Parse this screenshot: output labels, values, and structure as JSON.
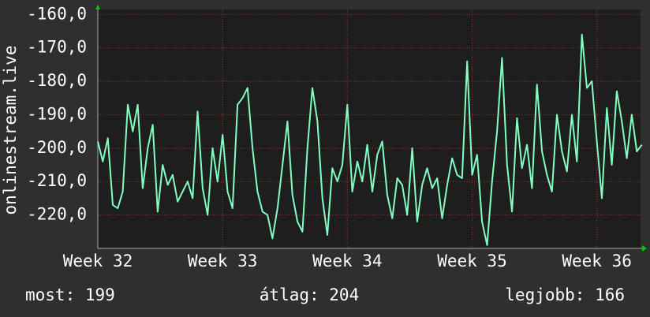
{
  "chart_data": {
    "type": "line",
    "y_label": "onlinestream.live",
    "x": [
      32,
      32.04,
      32.08,
      32.12,
      32.16,
      32.2,
      32.24,
      32.28,
      32.32,
      32.36,
      32.4,
      32.44,
      32.48,
      32.52,
      32.56,
      32.6,
      32.64,
      32.68,
      32.72,
      32.76,
      32.8,
      32.84,
      32.88,
      32.92,
      32.96,
      33,
      33.04,
      33.08,
      33.12,
      33.16,
      33.2,
      33.24,
      33.28,
      33.32,
      33.36,
      33.4,
      33.44,
      33.48,
      33.52,
      33.56,
      33.6,
      33.64,
      33.68,
      33.72,
      33.76,
      33.8,
      33.84,
      33.88,
      33.92,
      33.96,
      34,
      34.04,
      34.08,
      34.12,
      34.16,
      34.2,
      34.24,
      34.28,
      34.32,
      34.36,
      34.4,
      34.44,
      34.48,
      34.52,
      34.56,
      34.6,
      34.64,
      34.68,
      34.72,
      34.76,
      34.8,
      34.84,
      34.88,
      34.92,
      34.96,
      35,
      35.04,
      35.08,
      35.12,
      35.16,
      35.2,
      35.24,
      35.28,
      35.32,
      35.36,
      35.4,
      35.44,
      35.48,
      35.52,
      35.56,
      35.6,
      35.64,
      35.68,
      35.72,
      35.76,
      35.8,
      35.84,
      35.88,
      35.92,
      35.96,
      36,
      36.04,
      36.08,
      36.12,
      36.16,
      36.2,
      36.24,
      36.28,
      36.32,
      36.36
    ],
    "series": [
      {
        "color": "#80ffc0",
        "values": [
          -198,
          -204,
          -197,
          -217,
          -218,
          -213,
          -187,
          -195,
          -187,
          -212,
          -200,
          -193,
          -219,
          -205,
          -211,
          -208,
          -216,
          -213,
          -210,
          -215,
          -189,
          -212,
          -220,
          -200,
          -210,
          -196,
          -213,
          -218,
          -187,
          -185,
          -182,
          -200,
          -213,
          -219,
          -220,
          -227,
          -218,
          -205,
          -192,
          -214,
          -222,
          -225,
          -200,
          -182,
          -192,
          -215,
          -226,
          -206,
          -210,
          -205,
          -187,
          -213,
          -204,
          -210,
          -199,
          -213,
          -202,
          -198,
          -214,
          -221,
          -209,
          -211,
          -220,
          -200,
          -222,
          -211,
          -206,
          -212,
          -209,
          -221,
          -211,
          -203,
          -208,
          -209,
          -174,
          -208,
          -202,
          -222,
          -229,
          -210,
          -195,
          -173,
          -205,
          -219,
          -191,
          -206,
          -199,
          -212,
          -181,
          -201,
          -208,
          -213,
          -190,
          -201,
          -207,
          -190,
          -204,
          -166,
          -182,
          -180,
          -198,
          -215,
          -188,
          -205,
          -183,
          -192,
          -203,
          -190,
          -201,
          -199
        ]
      }
    ],
    "xlim": [
      32,
      36.35
    ],
    "xticks": [
      {
        "value": 32,
        "label": "Week 32"
      },
      {
        "value": 33,
        "label": "Week 33"
      },
      {
        "value": 34,
        "label": "Week 34"
      },
      {
        "value": 35,
        "label": "Week 35"
      },
      {
        "value": 36,
        "label": "Week 36"
      }
    ],
    "ylim": [
      -230,
      -158.5
    ],
    "yticks": [
      {
        "value": -160,
        "label": "-160,0"
      },
      {
        "value": -170,
        "label": "-170,0"
      },
      {
        "value": -180,
        "label": "-180,0"
      },
      {
        "value": -190,
        "label": "-190,0"
      },
      {
        "value": -200,
        "label": "-200,0"
      },
      {
        "value": -210,
        "label": "-210,0"
      },
      {
        "value": -220,
        "label": "-220,0"
      }
    ],
    "grid": true,
    "footer": [
      "most: 199",
      "átlag: 204",
      "legjobb: 166"
    ]
  }
}
